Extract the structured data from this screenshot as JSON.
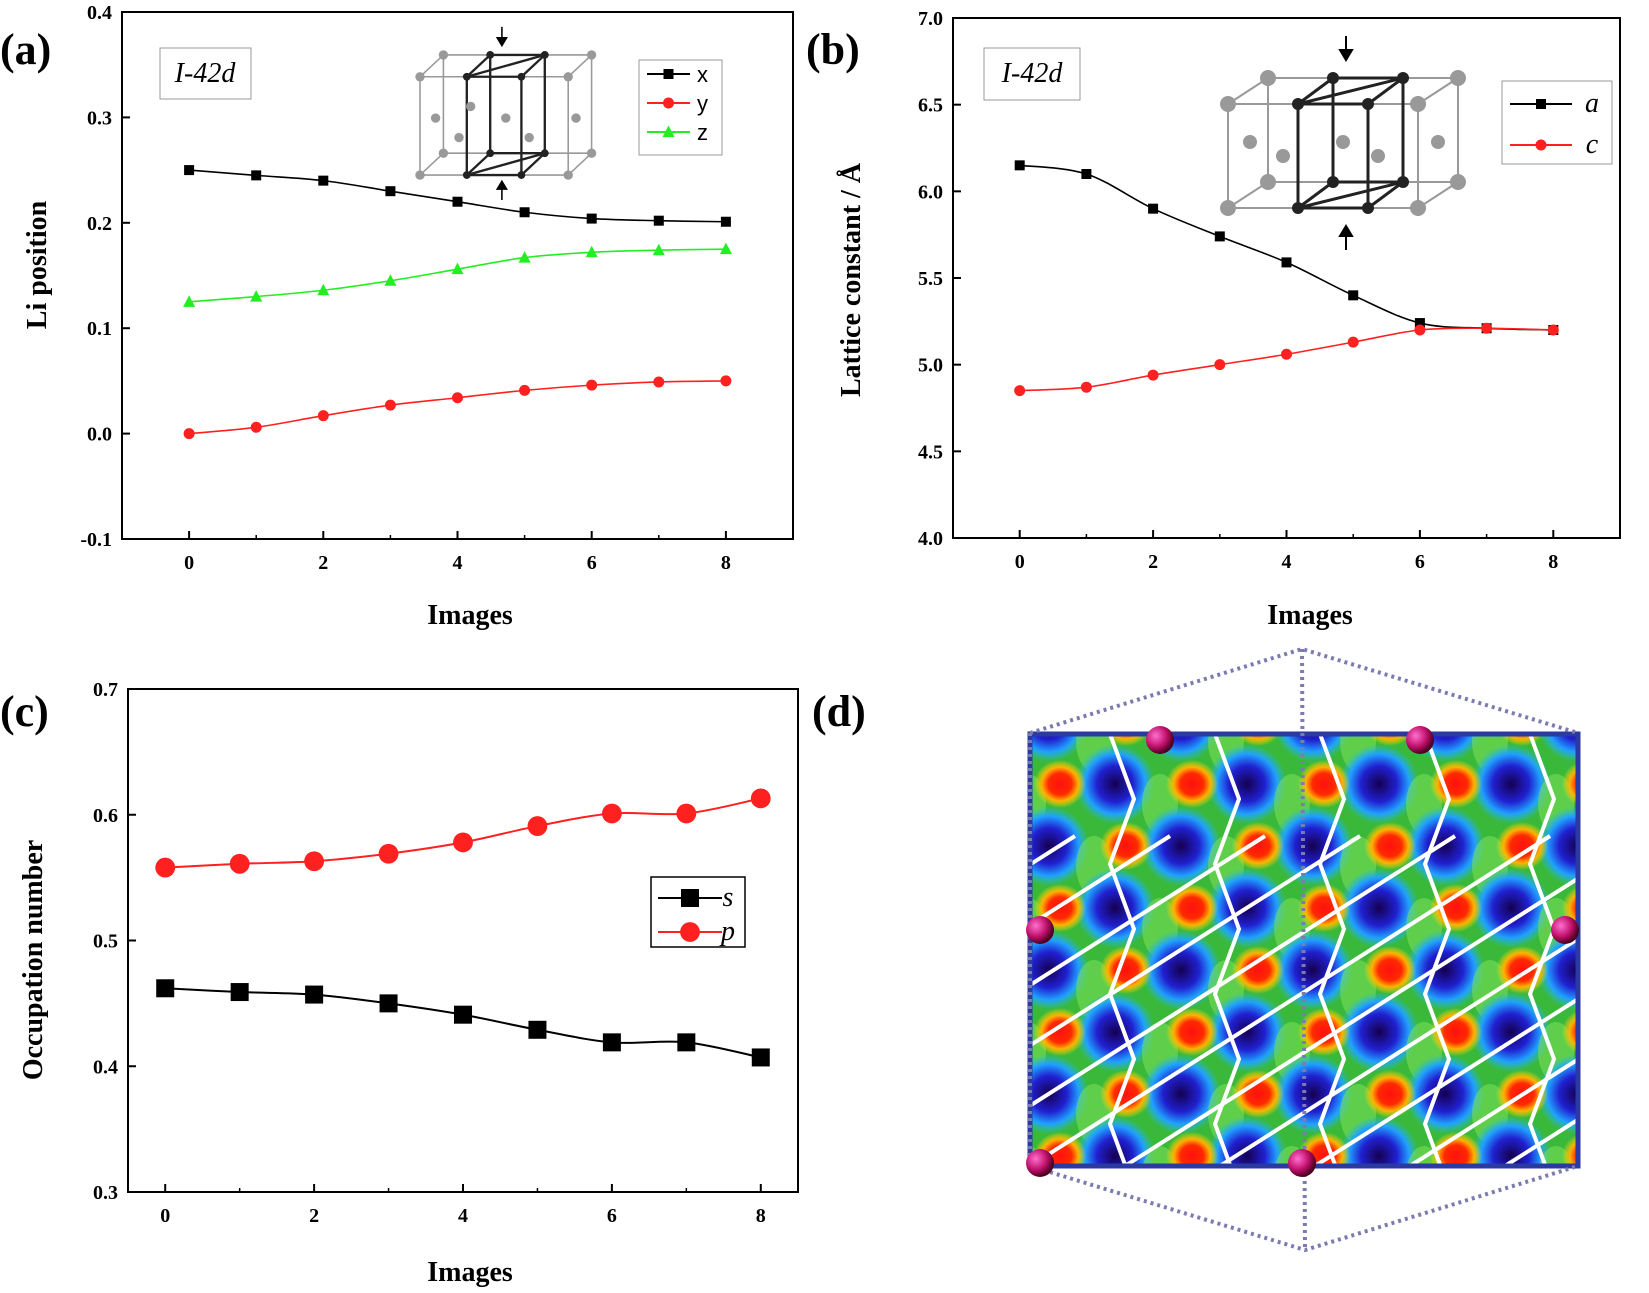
{
  "panels": [
    {
      "label": "(a)",
      "space_group": "I-42d"
    },
    {
      "label": "(b)",
      "space_group": "I-42d"
    },
    {
      "label": "(c)"
    },
    {
      "label": "(d)"
    }
  ],
  "chart_data": [
    {
      "type": "line",
      "xlabel": "Images",
      "ylabel": "Li position",
      "xlim": [
        -1,
        9
      ],
      "ylim": [
        -0.1,
        0.4
      ],
      "xticks": [
        "0",
        "2",
        "4",
        "6",
        "8"
      ],
      "yticks": [
        "-0.1",
        "0.0",
        "0.1",
        "0.2",
        "0.3",
        "0.4"
      ],
      "legend_position": "top-right",
      "x": [
        0,
        1,
        2,
        3,
        4,
        5,
        6,
        7,
        8
      ],
      "series": [
        {
          "name": "x",
          "color": "#000000",
          "marker": "square",
          "values": [
            0.25,
            0.245,
            0.24,
            0.23,
            0.22,
            0.21,
            0.204,
            0.202,
            0.201
          ]
        },
        {
          "name": "y",
          "color": "#ff2020",
          "marker": "circle",
          "values": [
            0.0,
            0.006,
            0.017,
            0.027,
            0.034,
            0.041,
            0.046,
            0.049,
            0.05
          ]
        },
        {
          "name": "z",
          "color": "#22ee22",
          "marker": "triangle",
          "values": [
            0.125,
            0.13,
            0.136,
            0.145,
            0.156,
            0.167,
            0.172,
            0.174,
            0.175
          ]
        }
      ]
    },
    {
      "type": "line",
      "xlabel": "Images",
      "ylabel": "Lattice constant / Å",
      "xlim": [
        -1,
        9
      ],
      "ylim": [
        4.0,
        7.0
      ],
      "xticks": [
        "0",
        "2",
        "4",
        "6",
        "8"
      ],
      "yticks": [
        "4.0",
        "4.5",
        "5.0",
        "5.5",
        "6.0",
        "6.5",
        "7.0"
      ],
      "legend_position": "top-right",
      "x": [
        0,
        1,
        2,
        3,
        4,
        5,
        6,
        7,
        8
      ],
      "series": [
        {
          "name": "a",
          "color": "#000000",
          "marker": "square",
          "values": [
            6.15,
            6.1,
            5.9,
            5.74,
            5.59,
            5.4,
            5.24,
            5.21,
            5.2
          ]
        },
        {
          "name": "c",
          "color": "#ff2020",
          "marker": "circle",
          "values": [
            4.85,
            4.87,
            4.94,
            5.0,
            5.06,
            5.13,
            5.2,
            5.21,
            5.2
          ]
        }
      ]
    },
    {
      "type": "line",
      "xlabel": "Images",
      "ylabel": "Occupation number",
      "xlim": [
        -0.5,
        8.5
      ],
      "ylim": [
        0.3,
        0.7
      ],
      "xticks": [
        "0",
        "2",
        "4",
        "6",
        "8"
      ],
      "yticks": [
        "0.3",
        "0.4",
        "0.5",
        "0.6",
        "0.7"
      ],
      "legend_position": "right",
      "x": [
        0,
        1,
        2,
        3,
        4,
        5,
        6,
        7,
        8
      ],
      "series": [
        {
          "name": "s",
          "color": "#000000",
          "marker": "square",
          "values": [
            0.462,
            0.459,
            0.457,
            0.45,
            0.441,
            0.429,
            0.419,
            0.419,
            0.407
          ]
        },
        {
          "name": "p",
          "color": "#ff2020",
          "marker": "circle",
          "values": [
            0.558,
            0.561,
            0.563,
            0.569,
            0.578,
            0.591,
            0.601,
            0.601,
            0.613
          ]
        }
      ]
    }
  ]
}
